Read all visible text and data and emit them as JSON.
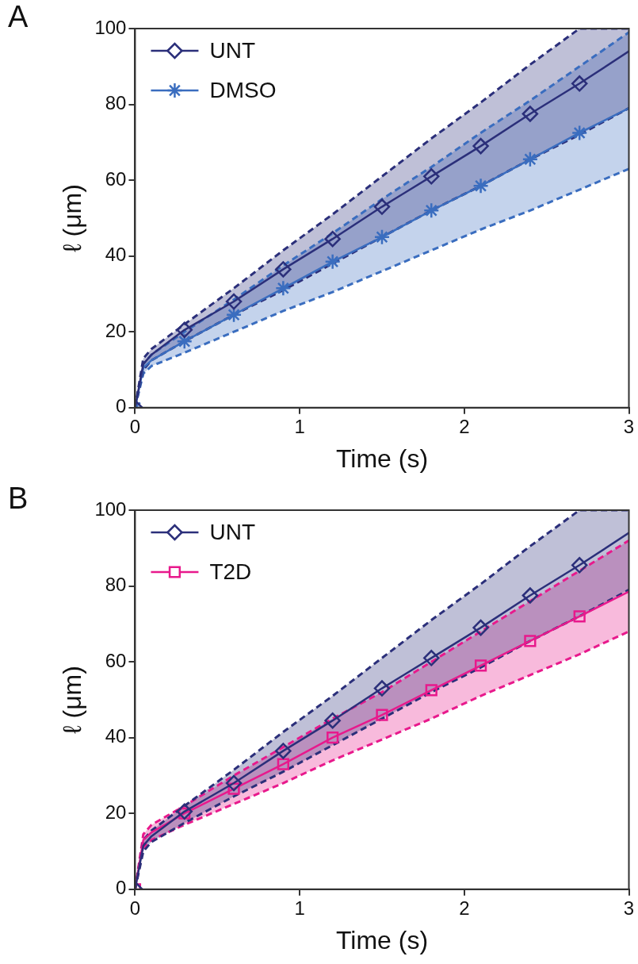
{
  "chart_data": [
    {
      "type": "line",
      "annotations": [
        "A"
      ],
      "xlabel": "Time (s)",
      "ylabel": "ℓ (μm)",
      "xlim": [
        0,
        3
      ],
      "xticks": [
        0,
        1,
        2,
        3
      ],
      "ylim": [
        0,
        100
      ],
      "yticks": [
        0,
        20,
        40,
        60,
        80,
        100
      ],
      "grid": false,
      "legend": "top left",
      "line_style": "solid",
      "x": [
        0,
        0.05,
        0.1,
        0.3,
        0.6,
        0.9,
        1.2,
        1.5,
        1.8,
        2.1,
        2.4,
        2.7,
        3
      ],
      "series": [
        {
          "name": "UNT",
          "color": "#2b2f7a",
          "marker": "diamond",
          "values": [
            0,
            11.5,
            14,
            20.5,
            28,
            36.5,
            44.5,
            53,
            61,
            69,
            77.5,
            85.5,
            94
          ],
          "lower": [
            0,
            10,
            12.5,
            17.5,
            24.5,
            31,
            38,
            45,
            52,
            58.5,
            65.5,
            72,
            79
          ],
          "upper": [
            0,
            13,
            15.5,
            22,
            31.5,
            41.5,
            51,
            61,
            71,
            80.5,
            90.5,
            100,
            100
          ]
        },
        {
          "name": "DMSO",
          "color": "#3a6dbf",
          "marker": "cross",
          "values": [
            0,
            10.5,
            12.5,
            17.5,
            24.5,
            31.5,
            38.5,
            45,
            52,
            58.5,
            65.5,
            72.5,
            79
          ],
          "lower": [
            0,
            9,
            11,
            14.5,
            20,
            25.5,
            30.5,
            36,
            41.5,
            47,
            52,
            57.5,
            63
          ],
          "upper": [
            0,
            11.5,
            14,
            20,
            28.5,
            37.5,
            46,
            55,
            63.5,
            72.5,
            81,
            90,
            99
          ]
        },
        {
          "color": "#2b2f7a",
          "marker": "none",
          "line_style": "dashed",
          "values": [
            0,
            13,
            15.5,
            22,
            31.5,
            41.5,
            51,
            61,
            71,
            80.5,
            90.5,
            100,
            100
          ]
        },
        {
          "color": "#2b2f7a",
          "marker": "none",
          "line_style": "dashed",
          "values": [
            0,
            10,
            12.5,
            17.5,
            24.5,
            31,
            38,
            45,
            52,
            58.5,
            65.5,
            72,
            79
          ]
        },
        {
          "color": "#3a6dbf",
          "marker": "none",
          "line_style": "dashed",
          "values": [
            0,
            11.5,
            14,
            20,
            28.5,
            37.5,
            46,
            55,
            63.5,
            72.5,
            81,
            90,
            99
          ]
        },
        {
          "color": "#3a6dbf",
          "marker": "none",
          "line_style": "dashed",
          "values": [
            0,
            9,
            11,
            14.5,
            20,
            25.5,
            30.5,
            36,
            41.5,
            47,
            52,
            57.5,
            63
          ]
        }
      ]
    },
    {
      "type": "line",
      "annotations": [
        "B"
      ],
      "xlabel": "Time (s)",
      "ylabel": "ℓ (μm)",
      "xlim": [
        0,
        3
      ],
      "xticks": [
        0,
        1,
        2,
        3
      ],
      "ylim": [
        0,
        100
      ],
      "yticks": [
        0,
        20,
        40,
        60,
        80,
        100
      ],
      "grid": false,
      "legend": "top left",
      "line_style": "solid",
      "x": [
        0,
        0.05,
        0.1,
        0.3,
        0.6,
        0.9,
        1.2,
        1.5,
        1.8,
        2.1,
        2.4,
        2.7,
        3
      ],
      "series": [
        {
          "name": "UNT",
          "color": "#2b2f7a",
          "marker": "diamond",
          "values": [
            0,
            11.5,
            14,
            20.5,
            28,
            36.5,
            44.5,
            53,
            61,
            69,
            77.5,
            85.5,
            94
          ],
          "lower": [
            0,
            10,
            12.5,
            17.5,
            24.5,
            31,
            38,
            45,
            52,
            58.5,
            65.5,
            72,
            79
          ],
          "upper": [
            0,
            13,
            15.5,
            22,
            31.5,
            41.5,
            51,
            61,
            71,
            80.5,
            90.5,
            100,
            100
          ]
        },
        {
          "name": "T2D",
          "color": "#e8198c",
          "marker": "square",
          "values": [
            0,
            13,
            15,
            20,
            26.5,
            33,
            40,
            46,
            52.5,
            59,
            65.5,
            72,
            78.5
          ],
          "lower": [
            0,
            11,
            13,
            17,
            22.5,
            28,
            34,
            39.5,
            45,
            51,
            56.5,
            62,
            68
          ],
          "upper": [
            0,
            14.5,
            17,
            22,
            30,
            37.5,
            45,
            52,
            60,
            68,
            76,
            84,
            92
          ]
        },
        {
          "color": "#2b2f7a",
          "marker": "none",
          "line_style": "dashed",
          "values": [
            0,
            13,
            15.5,
            22,
            31.5,
            41.5,
            51,
            61,
            71,
            80.5,
            90.5,
            100,
            100
          ]
        },
        {
          "color": "#2b2f7a",
          "marker": "none",
          "line_style": "dashed",
          "values": [
            0,
            10,
            12.5,
            17.5,
            24.5,
            31,
            38,
            45,
            52,
            58.5,
            65.5,
            72,
            79
          ]
        },
        {
          "color": "#e8198c",
          "marker": "none",
          "line_style": "dashed",
          "values": [
            0,
            14.5,
            17,
            22,
            30,
            37.5,
            45,
            52,
            60,
            68,
            76,
            84,
            92
          ]
        },
        {
          "color": "#e8198c",
          "marker": "none",
          "line_style": "dashed",
          "values": [
            0,
            11,
            13,
            17,
            22.5,
            28,
            34,
            39.5,
            45,
            51,
            56.5,
            62,
            68
          ]
        }
      ]
    }
  ]
}
